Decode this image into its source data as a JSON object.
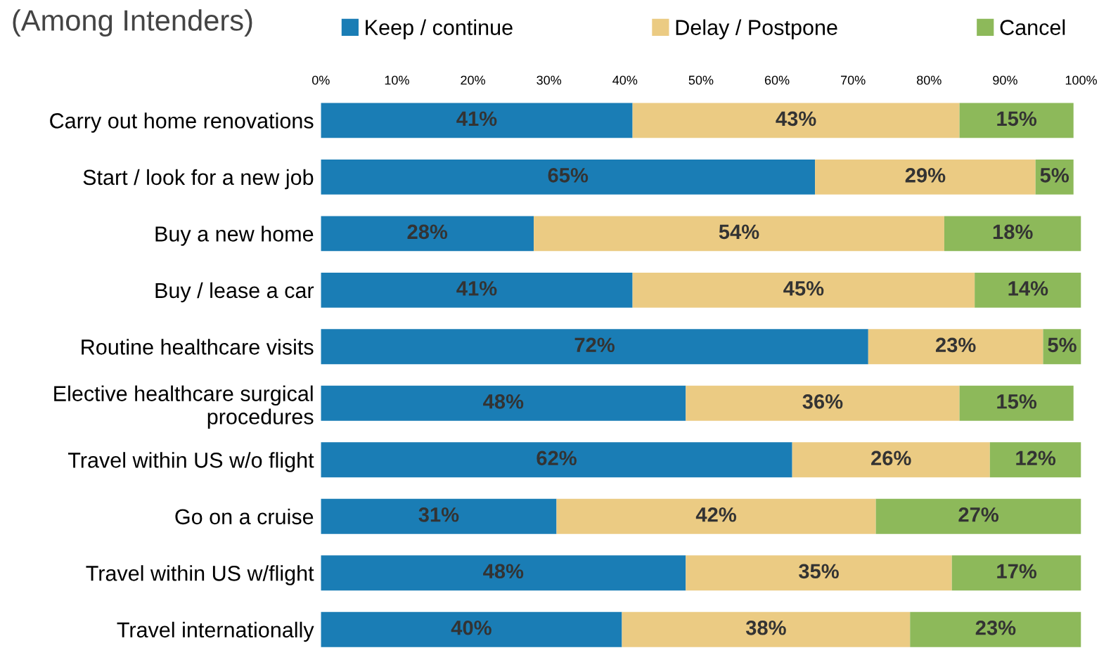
{
  "chart_data": {
    "type": "bar",
    "orientation": "horizontal",
    "stacked": true,
    "title": "(Among Intenders)",
    "categories": [
      "Carry out home renovations",
      "Start / look for a new job",
      "Buy a new home",
      "Buy / lease a car",
      "Routine healthcare visits",
      "Elective healthcare surgical\nprocedures",
      "Travel within US w/o flight",
      "Go on a cruise",
      "Travel within US w/flight",
      "Travel internationally"
    ],
    "series": [
      {
        "name": "Keep / continue",
        "color": "#1a7db5",
        "values": [
          41,
          65,
          28,
          41,
          72,
          48,
          62,
          31,
          48,
          39.6
        ],
        "value_labels": [
          "41%",
          "65%",
          "28%",
          "41%",
          "72%",
          "48%",
          "62%",
          "31%",
          "48%",
          "40%"
        ]
      },
      {
        "name": "Delay / Postpone",
        "color": "#ebcb83",
        "values": [
          43,
          29,
          54,
          45,
          23,
          36,
          26,
          42,
          35,
          37.9
        ],
        "value_labels": [
          "43%",
          "29%",
          "54%",
          "45%",
          "23%",
          "36%",
          "26%",
          "42%",
          "35%",
          "38%"
        ]
      },
      {
        "name": "Cancel",
        "color": "#8db95a",
        "values": [
          15,
          5,
          18,
          14,
          5,
          15,
          12,
          27,
          17,
          22.5
        ],
        "value_labels": [
          "15%",
          "5%",
          "18%",
          "14%",
          "5%",
          "15%",
          "12%",
          "27%",
          "17%",
          "23%"
        ]
      }
    ],
    "xlim": [
      0,
      100
    ],
    "xticks": [
      {
        "value": 0,
        "label": "0%"
      },
      {
        "value": 10,
        "label": "10%"
      },
      {
        "value": 20,
        "label": "20%"
      },
      {
        "value": 30,
        "label": "30%"
      },
      {
        "value": 40,
        "label": "40%"
      },
      {
        "value": 50,
        "label": "50%"
      },
      {
        "value": 60,
        "label": "60%"
      },
      {
        "value": 70,
        "label": "70%"
      },
      {
        "value": 80,
        "label": "80%"
      },
      {
        "value": 90,
        "label": "90%"
      },
      {
        "value": 100,
        "label": "100%"
      }
    ],
    "legend": "top",
    "grid": false
  }
}
